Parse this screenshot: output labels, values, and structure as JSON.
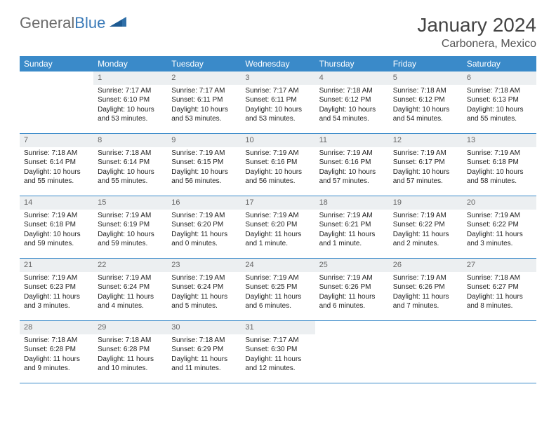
{
  "brand": {
    "name_part1": "General",
    "name_part2": "Blue",
    "logo_color": "#2f6fa8"
  },
  "header": {
    "month_title": "January 2024",
    "location": "Carbonera, Mexico"
  },
  "colors": {
    "header_row_bg": "#3a8ac9",
    "header_row_fg": "#ffffff",
    "daynum_bg": "#eceff1",
    "cell_border": "#3a8ac9"
  },
  "weekdays": [
    "Sunday",
    "Monday",
    "Tuesday",
    "Wednesday",
    "Thursday",
    "Friday",
    "Saturday"
  ],
  "weeks": [
    [
      null,
      {
        "n": "1",
        "sr": "Sunrise: 7:17 AM",
        "ss": "Sunset: 6:10 PM",
        "d1": "Daylight: 10 hours",
        "d2": "and 53 minutes."
      },
      {
        "n": "2",
        "sr": "Sunrise: 7:17 AM",
        "ss": "Sunset: 6:11 PM",
        "d1": "Daylight: 10 hours",
        "d2": "and 53 minutes."
      },
      {
        "n": "3",
        "sr": "Sunrise: 7:17 AM",
        "ss": "Sunset: 6:11 PM",
        "d1": "Daylight: 10 hours",
        "d2": "and 53 minutes."
      },
      {
        "n": "4",
        "sr": "Sunrise: 7:18 AM",
        "ss": "Sunset: 6:12 PM",
        "d1": "Daylight: 10 hours",
        "d2": "and 54 minutes."
      },
      {
        "n": "5",
        "sr": "Sunrise: 7:18 AM",
        "ss": "Sunset: 6:12 PM",
        "d1": "Daylight: 10 hours",
        "d2": "and 54 minutes."
      },
      {
        "n": "6",
        "sr": "Sunrise: 7:18 AM",
        "ss": "Sunset: 6:13 PM",
        "d1": "Daylight: 10 hours",
        "d2": "and 55 minutes."
      }
    ],
    [
      {
        "n": "7",
        "sr": "Sunrise: 7:18 AM",
        "ss": "Sunset: 6:14 PM",
        "d1": "Daylight: 10 hours",
        "d2": "and 55 minutes."
      },
      {
        "n": "8",
        "sr": "Sunrise: 7:18 AM",
        "ss": "Sunset: 6:14 PM",
        "d1": "Daylight: 10 hours",
        "d2": "and 55 minutes."
      },
      {
        "n": "9",
        "sr": "Sunrise: 7:19 AM",
        "ss": "Sunset: 6:15 PM",
        "d1": "Daylight: 10 hours",
        "d2": "and 56 minutes."
      },
      {
        "n": "10",
        "sr": "Sunrise: 7:19 AM",
        "ss": "Sunset: 6:16 PM",
        "d1": "Daylight: 10 hours",
        "d2": "and 56 minutes."
      },
      {
        "n": "11",
        "sr": "Sunrise: 7:19 AM",
        "ss": "Sunset: 6:16 PM",
        "d1": "Daylight: 10 hours",
        "d2": "and 57 minutes."
      },
      {
        "n": "12",
        "sr": "Sunrise: 7:19 AM",
        "ss": "Sunset: 6:17 PM",
        "d1": "Daylight: 10 hours",
        "d2": "and 57 minutes."
      },
      {
        "n": "13",
        "sr": "Sunrise: 7:19 AM",
        "ss": "Sunset: 6:18 PM",
        "d1": "Daylight: 10 hours",
        "d2": "and 58 minutes."
      }
    ],
    [
      {
        "n": "14",
        "sr": "Sunrise: 7:19 AM",
        "ss": "Sunset: 6:18 PM",
        "d1": "Daylight: 10 hours",
        "d2": "and 59 minutes."
      },
      {
        "n": "15",
        "sr": "Sunrise: 7:19 AM",
        "ss": "Sunset: 6:19 PM",
        "d1": "Daylight: 10 hours",
        "d2": "and 59 minutes."
      },
      {
        "n": "16",
        "sr": "Sunrise: 7:19 AM",
        "ss": "Sunset: 6:20 PM",
        "d1": "Daylight: 11 hours",
        "d2": "and 0 minutes."
      },
      {
        "n": "17",
        "sr": "Sunrise: 7:19 AM",
        "ss": "Sunset: 6:20 PM",
        "d1": "Daylight: 11 hours",
        "d2": "and 1 minute."
      },
      {
        "n": "18",
        "sr": "Sunrise: 7:19 AM",
        "ss": "Sunset: 6:21 PM",
        "d1": "Daylight: 11 hours",
        "d2": "and 1 minute."
      },
      {
        "n": "19",
        "sr": "Sunrise: 7:19 AM",
        "ss": "Sunset: 6:22 PM",
        "d1": "Daylight: 11 hours",
        "d2": "and 2 minutes."
      },
      {
        "n": "20",
        "sr": "Sunrise: 7:19 AM",
        "ss": "Sunset: 6:22 PM",
        "d1": "Daylight: 11 hours",
        "d2": "and 3 minutes."
      }
    ],
    [
      {
        "n": "21",
        "sr": "Sunrise: 7:19 AM",
        "ss": "Sunset: 6:23 PM",
        "d1": "Daylight: 11 hours",
        "d2": "and 3 minutes."
      },
      {
        "n": "22",
        "sr": "Sunrise: 7:19 AM",
        "ss": "Sunset: 6:24 PM",
        "d1": "Daylight: 11 hours",
        "d2": "and 4 minutes."
      },
      {
        "n": "23",
        "sr": "Sunrise: 7:19 AM",
        "ss": "Sunset: 6:24 PM",
        "d1": "Daylight: 11 hours",
        "d2": "and 5 minutes."
      },
      {
        "n": "24",
        "sr": "Sunrise: 7:19 AM",
        "ss": "Sunset: 6:25 PM",
        "d1": "Daylight: 11 hours",
        "d2": "and 6 minutes."
      },
      {
        "n": "25",
        "sr": "Sunrise: 7:19 AM",
        "ss": "Sunset: 6:26 PM",
        "d1": "Daylight: 11 hours",
        "d2": "and 6 minutes."
      },
      {
        "n": "26",
        "sr": "Sunrise: 7:19 AM",
        "ss": "Sunset: 6:26 PM",
        "d1": "Daylight: 11 hours",
        "d2": "and 7 minutes."
      },
      {
        "n": "27",
        "sr": "Sunrise: 7:18 AM",
        "ss": "Sunset: 6:27 PM",
        "d1": "Daylight: 11 hours",
        "d2": "and 8 minutes."
      }
    ],
    [
      {
        "n": "28",
        "sr": "Sunrise: 7:18 AM",
        "ss": "Sunset: 6:28 PM",
        "d1": "Daylight: 11 hours",
        "d2": "and 9 minutes."
      },
      {
        "n": "29",
        "sr": "Sunrise: 7:18 AM",
        "ss": "Sunset: 6:28 PM",
        "d1": "Daylight: 11 hours",
        "d2": "and 10 minutes."
      },
      {
        "n": "30",
        "sr": "Sunrise: 7:18 AM",
        "ss": "Sunset: 6:29 PM",
        "d1": "Daylight: 11 hours",
        "d2": "and 11 minutes."
      },
      {
        "n": "31",
        "sr": "Sunrise: 7:17 AM",
        "ss": "Sunset: 6:30 PM",
        "d1": "Daylight: 11 hours",
        "d2": "and 12 minutes."
      },
      null,
      null,
      null
    ]
  ]
}
